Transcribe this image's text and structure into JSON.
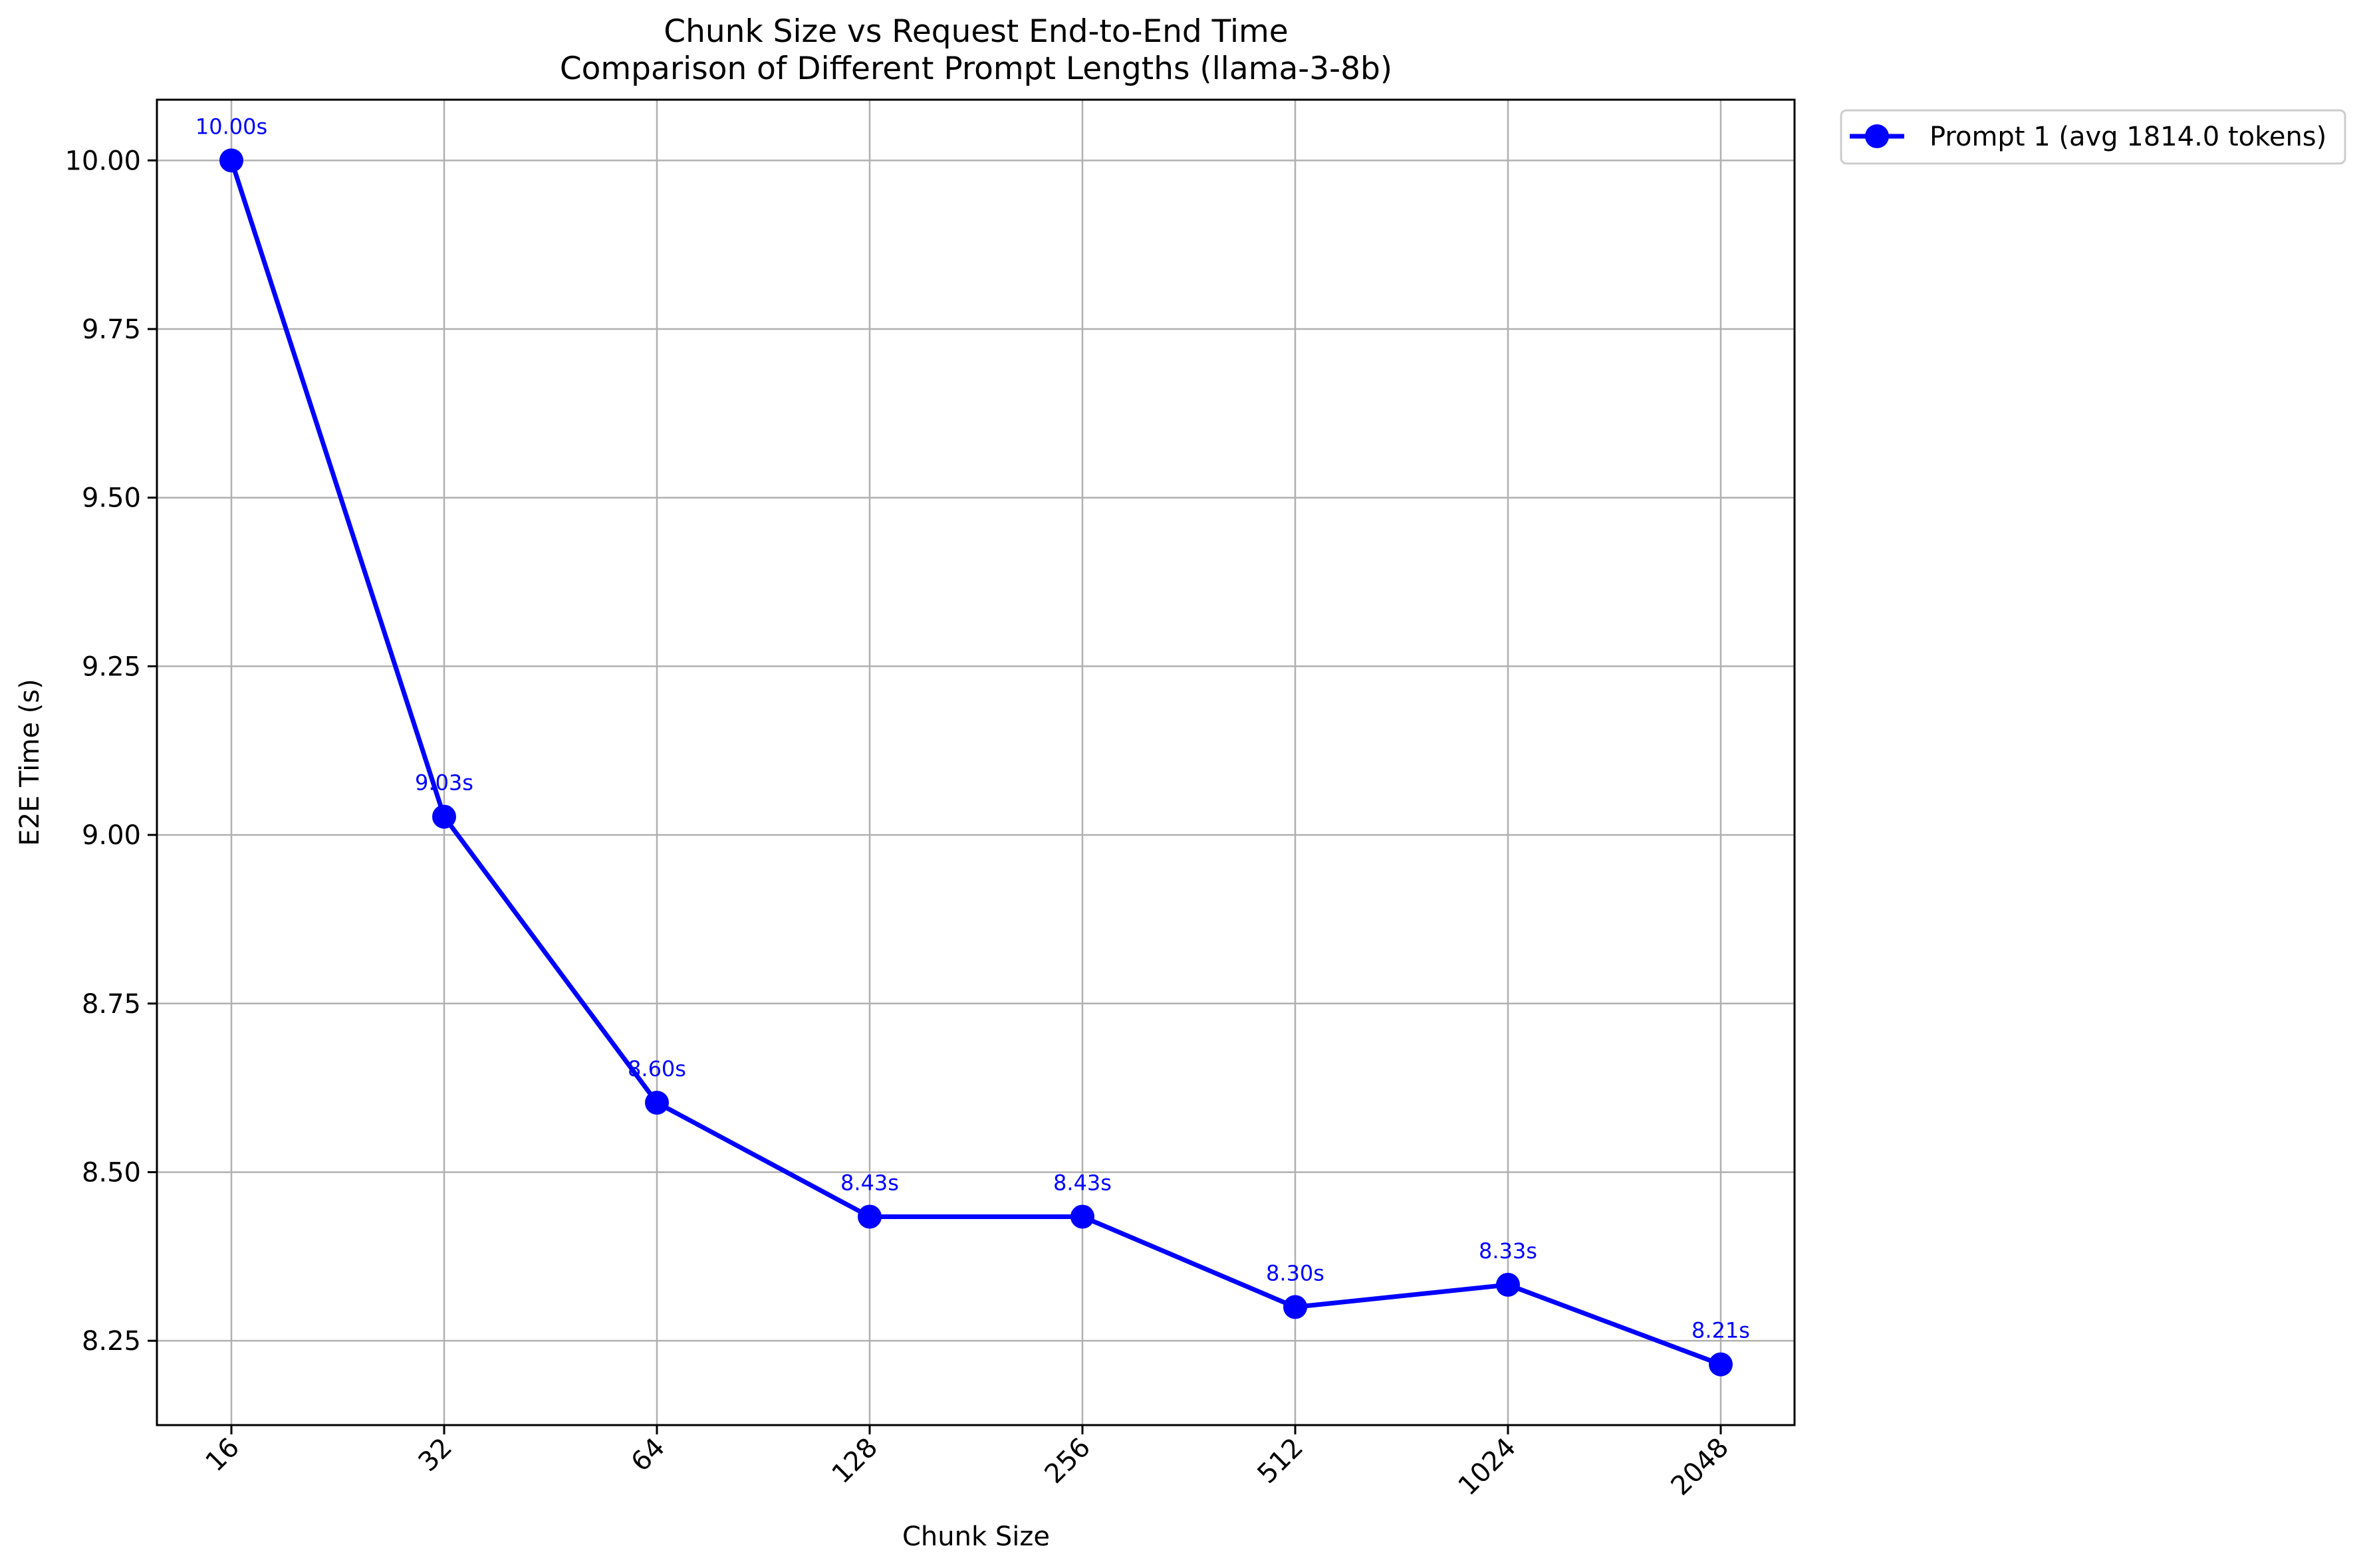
{
  "chart_data": {
    "type": "line",
    "title": "Chunk Size vs Request End-to-End Time",
    "subtitle": "Comparison of Different Prompt Lengths (llama-3-8b)",
    "xlabel": "Chunk Size",
    "ylabel": "E2E Time (s)",
    "categories": [
      "16",
      "32",
      "64",
      "128",
      "256",
      "512",
      "1024",
      "2048"
    ],
    "ylim": [
      8.125,
      10.09
    ],
    "yticks": [
      8.25,
      8.5,
      8.75,
      9.0,
      9.25,
      9.5,
      9.75,
      10.0
    ],
    "ytick_labels": [
      "8.25",
      "8.50",
      "8.75",
      "9.00",
      "9.25",
      "9.50",
      "9.75",
      "10.00"
    ],
    "grid": true,
    "legend_position": "outside upper right",
    "series": [
      {
        "name": "Prompt 1 (avg 1814.0 tokens)",
        "color": "#0000ff",
        "marker": "circle",
        "values": [
          10.0,
          9.027,
          8.603,
          8.434,
          8.434,
          8.3,
          8.333,
          8.215
        ],
        "labels": [
          "10.00s",
          "9.03s",
          "8.60s",
          "8.43s",
          "8.43s",
          "8.30s",
          "8.33s",
          "8.21s"
        ]
      }
    ]
  }
}
